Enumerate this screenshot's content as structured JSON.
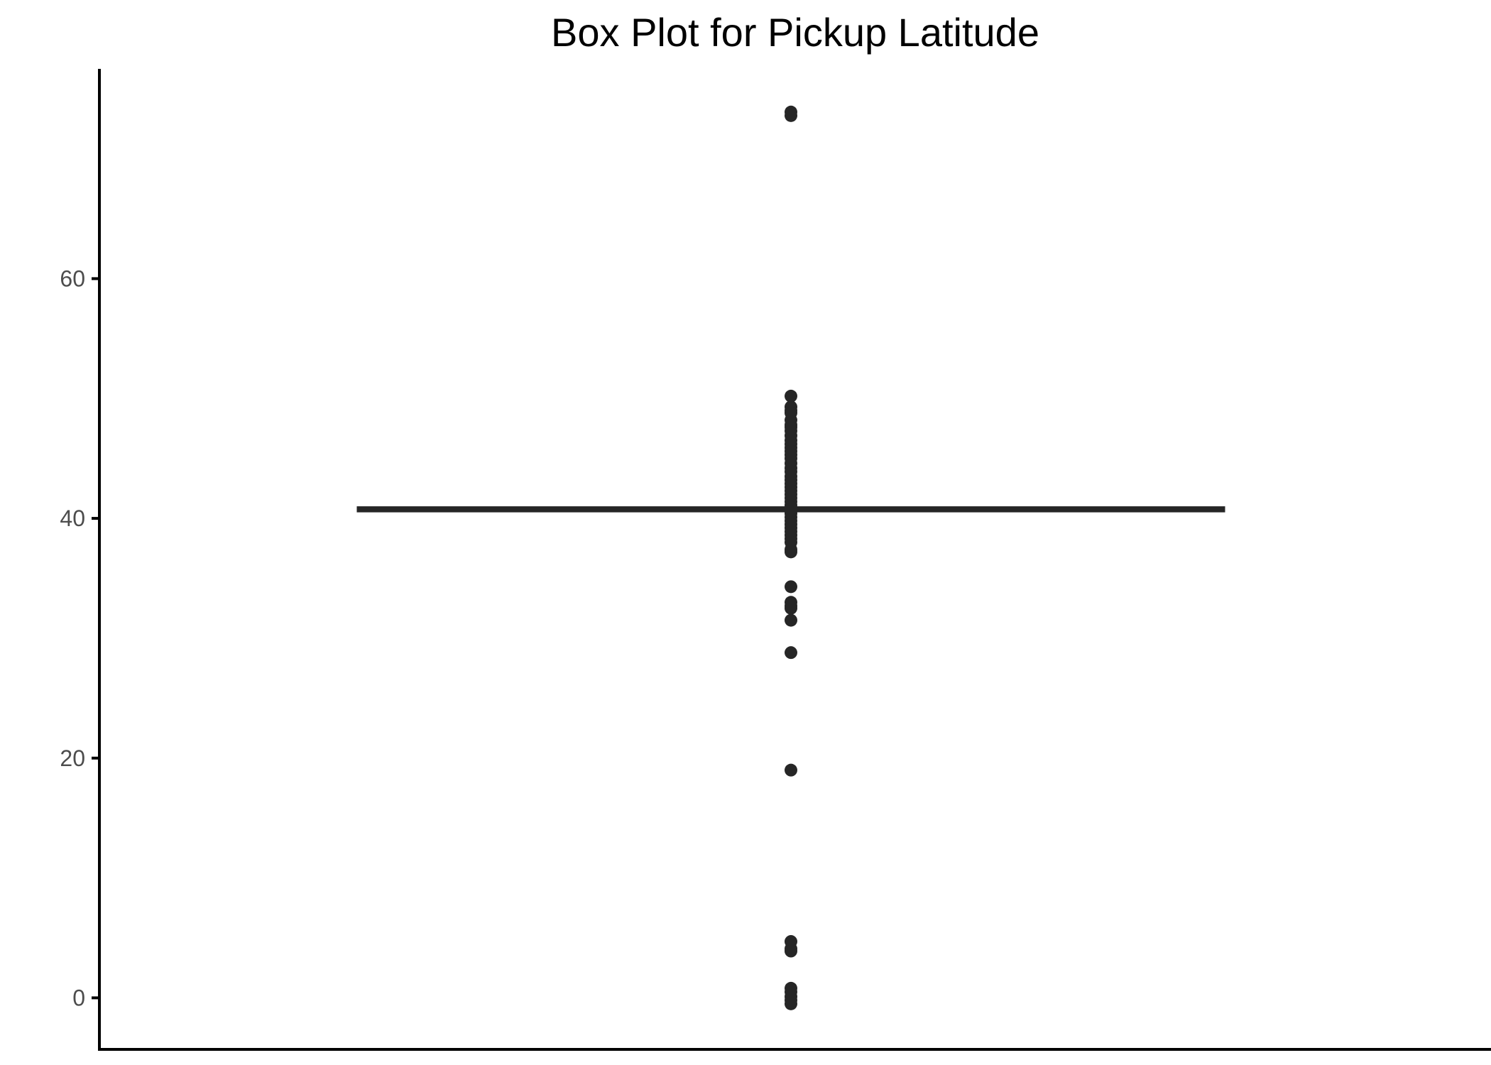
{
  "chart_data": {
    "type": "box",
    "title": "Box Plot for Pickup Latitude",
    "xlabel": "",
    "ylabel": "",
    "ylim": [
      -4.3,
      77.5
    ],
    "y_ticks": [
      0,
      20,
      40,
      60
    ],
    "y_tick_labels": [
      "0",
      "20",
      "40",
      "60"
    ],
    "grid": false,
    "legend": "none",
    "box": {
      "q1": 40.74,
      "median": 40.75,
      "q3": 40.77,
      "whisker_low": 40.7,
      "whisker_high": 40.81
    },
    "outliers": [
      73.6,
      73.9,
      50.2,
      49.3,
      49.0,
      48.8,
      48.2,
      47.8,
      47.6,
      47.3,
      46.9,
      46.5,
      46.2,
      45.9,
      45.6,
      45.3,
      45.0,
      44.6,
      44.2,
      43.9,
      43.5,
      43.2,
      42.9,
      42.6,
      42.3,
      42.0,
      41.7,
      41.4,
      41.1,
      40.9,
      40.6,
      40.4,
      40.1,
      39.8,
      39.5,
      39.2,
      38.9,
      38.6,
      38.3,
      38.0,
      37.4,
      37.2,
      34.3,
      33.0,
      32.7,
      32.5,
      31.5,
      28.8,
      19.0,
      4.7,
      4.1,
      3.9,
      0.8,
      0.5,
      0.1,
      -0.2,
      -0.5
    ],
    "colors": {
      "box": "#262626",
      "points": "#262626",
      "axis": "#000000",
      "tick_label": "#4d4d4d"
    }
  }
}
